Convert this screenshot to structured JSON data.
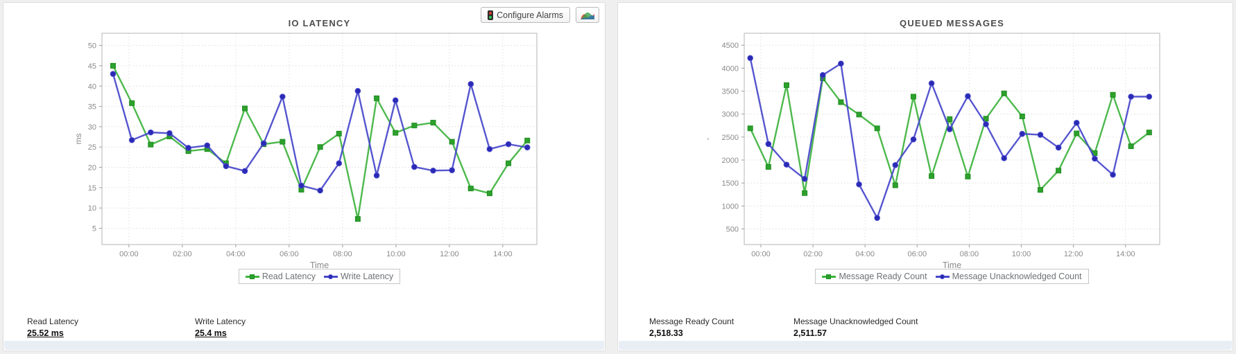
{
  "toolbar": {
    "buttons": [
      {
        "label": "Configure Alarms",
        "icon": "traffic-light-icon"
      },
      {
        "label": "",
        "icon": "line-chart-icon"
      }
    ]
  },
  "panels": [
    {
      "title": "IO LATENCY",
      "stats": [
        {
          "label": "Read Latency",
          "value": "25.52 ms"
        },
        {
          "label": "Write Latency",
          "value": "25.4 ms"
        }
      ]
    },
    {
      "title": "QUEUED MESSAGES",
      "stats": [
        {
          "label": "Message Ready Count",
          "value": "2,518.33"
        },
        {
          "label": "Message Unacknowledged Count",
          "value": "2,511.57"
        }
      ]
    }
  ],
  "chart_data": [
    {
      "type": "line",
      "title": "IO LATENCY",
      "xlabel": "Time",
      "ylabel": "ms",
      "grid": true,
      "legend_position": "bottom",
      "x_ticks": [
        "00:00",
        "02:00",
        "04:00",
        "06:00",
        "08:00",
        "10:00",
        "12:00",
        "14:00"
      ],
      "y_ticks": [
        5,
        10,
        15,
        20,
        25,
        30,
        35,
        40,
        45,
        50
      ],
      "ylim": [
        1,
        53
      ],
      "series": [
        {
          "name": "Read Latency",
          "marker": "square",
          "color": "#3eb33e",
          "marker_color": "#2da02d",
          "marker_border": "#1f8f1f",
          "values": [
            45,
            35.8,
            25.6,
            27.6,
            24,
            24.5,
            21,
            34.5,
            25.7,
            26.3,
            14.5,
            25,
            28.3,
            7.3,
            37,
            28.5,
            30.3,
            31,
            26.3,
            14.8,
            13.6,
            21,
            26.6
          ]
        },
        {
          "name": "Write Latency",
          "marker": "circle",
          "color": "#4747cb",
          "marker_color": "#2a2ab5",
          "marker_border": "#4848cc",
          "values": [
            43,
            26.7,
            28.6,
            28.4,
            24.8,
            25.4,
            20.3,
            19.1,
            25.9,
            37.4,
            15.5,
            14.3,
            21,
            38.8,
            18,
            36.5,
            20.1,
            19.2,
            19.3,
            40.5,
            24.5,
            25.7,
            24.9
          ]
        }
      ]
    },
    {
      "type": "line",
      "title": "QUEUED MESSAGES",
      "xlabel": "Time",
      "ylabel": "-",
      "grid": true,
      "legend_position": "bottom",
      "x_ticks": [
        "00:00",
        "02:00",
        "04:00",
        "06:00",
        "08:00",
        "10:00",
        "12:00",
        "14:00"
      ],
      "y_ticks": [
        500,
        1000,
        1500,
        2000,
        2500,
        3000,
        3500,
        4000,
        4500
      ],
      "ylim": [
        160,
        4760
      ],
      "series": [
        {
          "name": "Message Ready Count",
          "marker": "square",
          "color": "#3eb33e",
          "marker_color": "#2da02d",
          "marker_border": "#1f8f1f",
          "values": [
            2690,
            1850,
            3630,
            1280,
            3780,
            3260,
            2990,
            2690,
            1450,
            3380,
            1650,
            2890,
            1640,
            2900,
            3450,
            2950,
            1350,
            1770,
            2580,
            2150,
            3420,
            2300,
            2600
          ]
        },
        {
          "name": "Message Unacknowledged Count",
          "marker": "circle",
          "color": "#4747cb",
          "marker_color": "#2a2ab5",
          "marker_border": "#4848cc",
          "values": [
            4220,
            2350,
            1900,
            1590,
            3850,
            4100,
            1470,
            740,
            1890,
            2450,
            3670,
            2670,
            3390,
            2780,
            2040,
            2570,
            2550,
            2270,
            2810,
            2030,
            1680,
            3380,
            3380
          ]
        }
      ]
    }
  ]
}
